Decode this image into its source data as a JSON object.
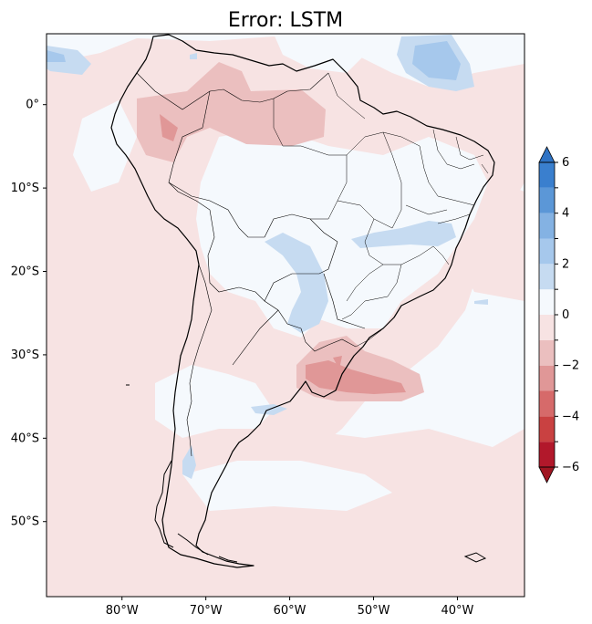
{
  "title": "Error: LSTM",
  "map": {
    "lon_range": [
      -89,
      -32
    ],
    "lat_range": [
      -59,
      8.5
    ],
    "lon_ticks": [
      {
        "value": -80,
        "label": "80°W"
      },
      {
        "value": -70,
        "label": "70°W"
      },
      {
        "value": -60,
        "label": "60°W"
      },
      {
        "value": -50,
        "label": "50°W"
      },
      {
        "value": -40,
        "label": "40°W"
      }
    ],
    "lat_ticks": [
      {
        "value": 0,
        "label": "0°"
      },
      {
        "value": -10,
        "label": "10°S"
      },
      {
        "value": -20,
        "label": "20°S"
      },
      {
        "value": -30,
        "label": "30°S"
      },
      {
        "value": -40,
        "label": "40°S"
      },
      {
        "value": -50,
        "label": "50°S"
      }
    ]
  },
  "colorbar": {
    "range": [
      -6,
      6
    ],
    "levels": [
      -6,
      -5,
      -4,
      -3,
      -2,
      -1,
      0,
      1,
      2,
      3,
      4,
      5,
      6
    ],
    "colors": [
      "#b2182b",
      "#c94141",
      "#d66a6a",
      "#e09797",
      "#ebbfbf",
      "#f7e3e3",
      "#f5f9fd",
      "#c6dbf1",
      "#a6c8ec",
      "#84b2e3",
      "#5b97d7",
      "#3a7fce"
    ],
    "extend_min_color": "#a01622",
    "extend_max_color": "#2f73c4",
    "tick_labels": [
      {
        "value": 6,
        "label": "6"
      },
      {
        "value": 4,
        "label": "4"
      },
      {
        "value": 2,
        "label": "2"
      },
      {
        "value": 0,
        "label": "0"
      },
      {
        "value": -2,
        "label": "−2"
      },
      {
        "value": -4,
        "label": "−4"
      },
      {
        "value": -6,
        "label": "−6"
      }
    ]
  },
  "colors": {
    "background_field": "#f5f9fd",
    "light_red": "#f7e3e3",
    "mid_red": "#ebbfbf",
    "red": "#e09797",
    "dark_red": "#d66a6a",
    "light_blue": "#c6dbf1",
    "blue": "#a6c8ec",
    "coast": "#000000"
  }
}
